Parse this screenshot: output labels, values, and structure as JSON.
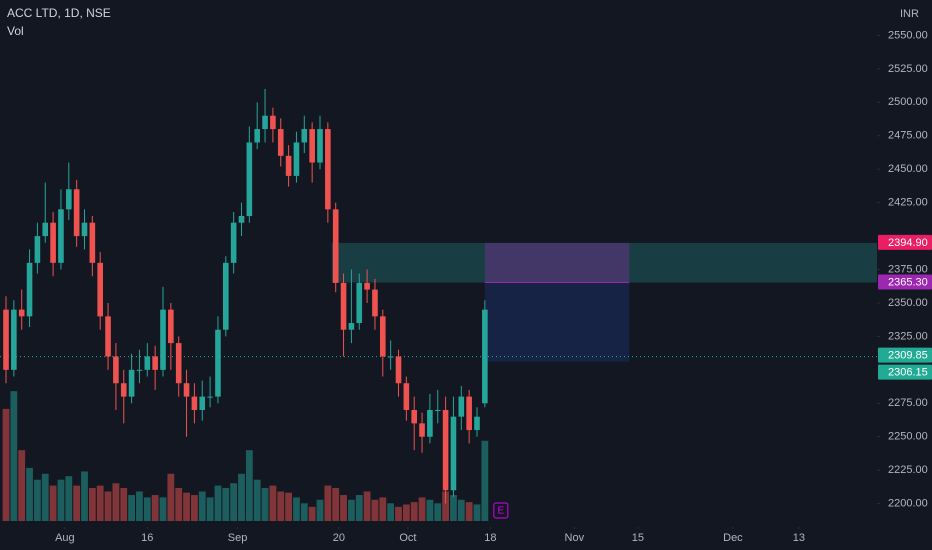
{
  "chart_data": {
    "type": "candlestick",
    "title": "ACC LTD, 1D, NSE",
    "volume_label": "Vol",
    "currency": "INR",
    "event_marker": "E",
    "up_color": "#26a69a",
    "down_color": "#ef5350",
    "grid": false,
    "ylim": [
      2190,
      2572
    ],
    "yticks": [
      {
        "value": 2200,
        "label": "2200.00"
      },
      {
        "value": 2225,
        "label": "2225.00"
      },
      {
        "value": 2250,
        "label": "2250.00"
      },
      {
        "value": 2275,
        "label": "2275.00"
      },
      {
        "value": 2325,
        "label": "2325.00"
      },
      {
        "value": 2350,
        "label": "2350.00"
      },
      {
        "value": 2375,
        "label": "2375.00"
      },
      {
        "value": 2425,
        "label": "2425.00"
      },
      {
        "value": 2450,
        "label": "2450.00"
      },
      {
        "value": 2475,
        "label": "2475.00"
      },
      {
        "value": 2500,
        "label": "2500.00"
      },
      {
        "value": 2525,
        "label": "2525.00"
      },
      {
        "value": 2550,
        "label": "2550.00"
      }
    ],
    "xticks": [
      {
        "value": 7.5,
        "label": "Aug"
      },
      {
        "value": 18,
        "label": "16"
      },
      {
        "value": 29.5,
        "label": "Sep"
      },
      {
        "value": 42.4,
        "label": "20"
      },
      {
        "value": 51.2,
        "label": "Oct"
      },
      {
        "value": 61.7,
        "label": "18"
      },
      {
        "value": 72.4,
        "label": "Nov"
      },
      {
        "value": 80.5,
        "label": "15"
      },
      {
        "value": 92.6,
        "label": "Dec"
      },
      {
        "value": 101,
        "label": "13"
      }
    ],
    "open": [
      2345,
      2300,
      2345,
      2340,
      2380,
      2400,
      2410,
      2380,
      2420,
      2435,
      2400,
      2410,
      2380,
      2340,
      2310,
      2290,
      2280,
      2300,
      2300,
      2310,
      2300,
      2345,
      2320,
      2290,
      2280,
      2270,
      2280,
      2280,
      2330,
      2380,
      2410,
      2415,
      2470,
      2480,
      2490,
      2480,
      2460,
      2445,
      2470,
      2480,
      2455,
      2480,
      2420,
      2365,
      2330,
      2335,
      2365,
      2360,
      2340,
      2310,
      2310,
      2290,
      2270,
      2260,
      2250,
      2270,
      2270,
      2210,
      2265,
      2280,
      2255,
      2275
    ],
    "high": [
      2355,
      2352,
      2360,
      2390,
      2410,
      2440,
      2418,
      2435,
      2455,
      2442,
      2420,
      2415,
      2388,
      2350,
      2320,
      2300,
      2312,
      2315,
      2320,
      2318,
      2362,
      2350,
      2325,
      2300,
      2290,
      2292,
      2295,
      2340,
      2385,
      2418,
      2425,
      2482,
      2500,
      2510,
      2496,
      2488,
      2468,
      2478,
      2490,
      2485,
      2490,
      2485,
      2425,
      2372,
      2375,
      2372,
      2375,
      2368,
      2345,
      2322,
      2315,
      2295,
      2280,
      2268,
      2282,
      2285,
      2280,
      2280,
      2288,
      2285,
      2272,
      2352
    ],
    "low": [
      2290,
      2295,
      2330,
      2332,
      2372,
      2395,
      2370,
      2375,
      2412,
      2392,
      2390,
      2370,
      2330,
      2300,
      2270,
      2260,
      2275,
      2290,
      2295,
      2285,
      2295,
      2300,
      2280,
      2250,
      2260,
      2262,
      2272,
      2275,
      2325,
      2372,
      2400,
      2410,
      2465,
      2470,
      2470,
      2452,
      2437,
      2440,
      2462,
      2440,
      2450,
      2410,
      2358,
      2310,
      2320,
      2330,
      2350,
      2330,
      2295,
      2300,
      2280,
      2262,
      2240,
      2238,
      2245,
      2260,
      2200,
      2205,
      2255,
      2245,
      2250,
      2272
    ],
    "close": [
      2300,
      2345,
      2340,
      2380,
      2400,
      2410,
      2380,
      2420,
      2435,
      2400,
      2410,
      2380,
      2340,
      2310,
      2290,
      2280,
      2300,
      2300,
      2310,
      2300,
      2345,
      2320,
      2290,
      2280,
      2270,
      2280,
      2280,
      2330,
      2380,
      2410,
      2415,
      2470,
      2480,
      2490,
      2480,
      2460,
      2445,
      2470,
      2480,
      2455,
      2480,
      2420,
      2365,
      2330,
      2335,
      2365,
      2360,
      2340,
      2310,
      2310,
      2290,
      2270,
      2260,
      2250,
      2270,
      2270,
      2210,
      2265,
      2280,
      2255,
      2265,
      2345
    ],
    "volume": [
      95,
      110,
      60,
      45,
      35,
      40,
      30,
      35,
      38,
      30,
      42,
      28,
      30,
      25,
      32,
      28,
      22,
      25,
      20,
      22,
      20,
      40,
      28,
      24,
      22,
      25,
      20,
      30,
      28,
      32,
      40,
      60,
      35,
      28,
      30,
      25,
      24,
      20,
      15,
      12,
      18,
      30,
      28,
      22,
      18,
      22,
      25,
      18,
      20,
      15,
      12,
      14,
      16,
      20,
      18,
      15,
      25,
      22,
      18,
      16,
      14,
      68
    ],
    "levels": [
      {
        "value": 2394.9,
        "label": "2394.90",
        "color": "#e91e63"
      },
      {
        "value": 2365.3,
        "label": "2365.30",
        "color": "#9c27b0"
      },
      {
        "value": 2309.85,
        "label": "2309.85",
        "color": "#22ab94"
      },
      {
        "value": 2306.15,
        "label": "2306.15",
        "color": "#22ab94"
      }
    ]
  }
}
